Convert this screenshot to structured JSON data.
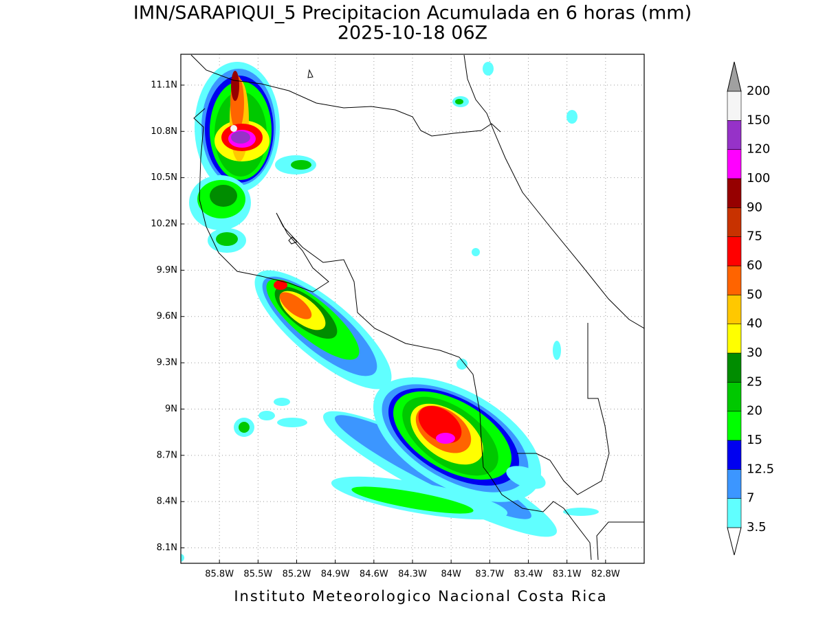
{
  "header": {
    "title": "IMN/SARAPIQUI_5 Precipitacion Acumulada en 6 horas (mm)",
    "subtitle": "2025-10-18 06Z"
  },
  "map": {
    "xlim": [
      -86.1,
      -82.5
    ],
    "ylim": [
      8.0,
      11.3
    ],
    "grid": true,
    "xticks": [
      {
        "value": -85.8,
        "label": "85.8W"
      },
      {
        "value": -85.5,
        "label": "85.5W"
      },
      {
        "value": -85.2,
        "label": "85.2W"
      },
      {
        "value": -84.9,
        "label": "84.9W"
      },
      {
        "value": -84.6,
        "label": "84.6W"
      },
      {
        "value": -84.3,
        "label": "84.3W"
      },
      {
        "value": -84.0,
        "label": "84W"
      },
      {
        "value": -83.7,
        "label": "83.7W"
      },
      {
        "value": -83.4,
        "label": "83.4W"
      },
      {
        "value": -83.1,
        "label": "83.1W"
      },
      {
        "value": -82.8,
        "label": "82.8W"
      }
    ],
    "yticks": [
      {
        "value": 8.1,
        "label": "8.1N"
      },
      {
        "value": 8.4,
        "label": "8.4N"
      },
      {
        "value": 8.7,
        "label": "8.7N"
      },
      {
        "value": 9.0,
        "label": "9N"
      },
      {
        "value": 9.3,
        "label": "9.3N"
      },
      {
        "value": 9.6,
        "label": "9.6N"
      },
      {
        "value": 9.9,
        "label": "9.9N"
      },
      {
        "value": 10.2,
        "label": "10.2N"
      },
      {
        "value": 10.5,
        "label": "10.5N"
      },
      {
        "value": 10.8,
        "label": "10.8N"
      },
      {
        "value": 11.1,
        "label": "11.1N"
      }
    ]
  },
  "colorbar": {
    "levels": [
      3.5,
      7,
      12.5,
      15,
      20,
      25,
      30,
      40,
      50,
      60,
      75,
      90,
      100,
      120,
      150,
      200
    ],
    "colors": [
      "#60ffff",
      "#3c96ff",
      "#0000f0",
      "#00ff00",
      "#00c800",
      "#008c00",
      "#ffff00",
      "#ffc800",
      "#ff6400",
      "#ff0000",
      "#c83200",
      "#960000",
      "#ff00ff",
      "#9632c8",
      "#f5f5f5"
    ],
    "under_color": "#ffffff",
    "over_color": "#a0a0a0"
  },
  "footer": "Instituto Meteorologico Nacional Costa Rica"
}
